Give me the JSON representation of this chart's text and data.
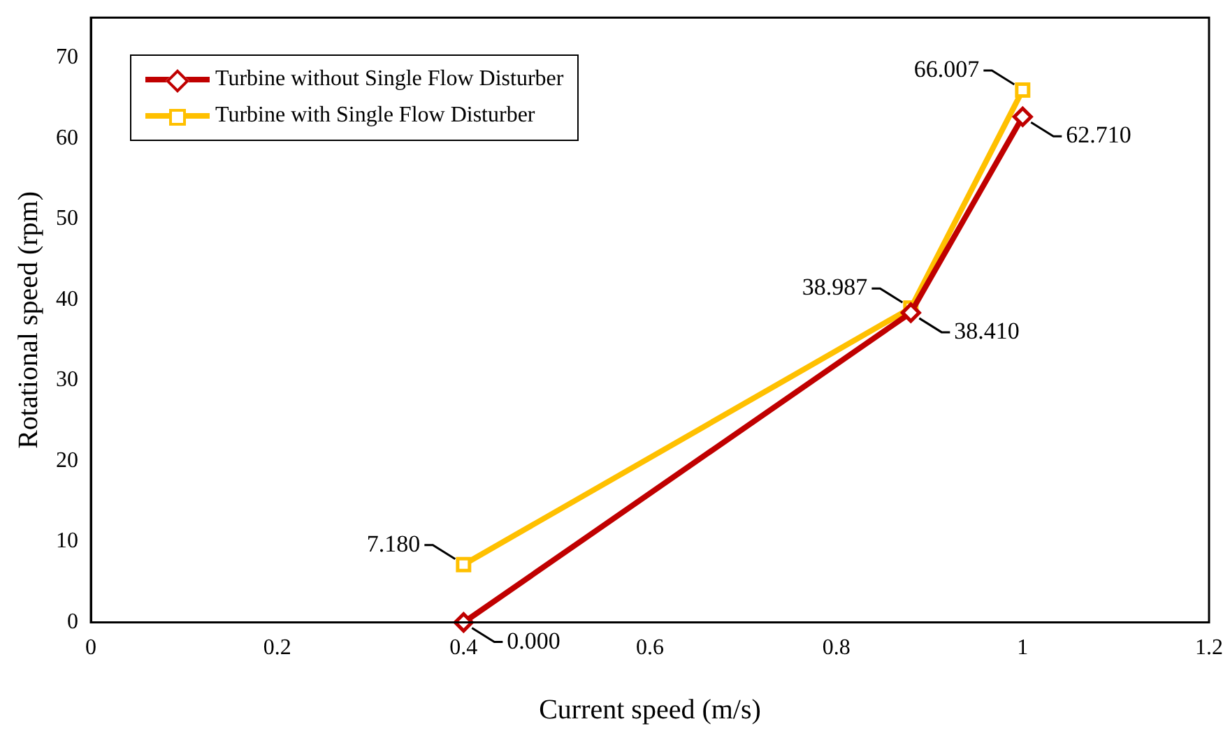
{
  "chart_data": {
    "type": "line",
    "xlabel": "Current speed (m/s)",
    "ylabel": "Rotational speed (rpm)",
    "x": [
      0.4,
      0.88,
      1
    ],
    "series": [
      {
        "name": "Turbine without Single Flow Disturber",
        "color": "#c00000",
        "marker": "diamond",
        "values": [
          0,
          38.41,
          62.71
        ],
        "value_labels": [
          "0.000",
          "38.410",
          "62.710"
        ]
      },
      {
        "name": "Turbine with Single Flow Disturber",
        "color": "#ffc000",
        "marker": "square",
        "values": [
          7.18,
          38.987,
          66.007
        ],
        "value_labels": [
          "7.180",
          "38.987",
          "66.007"
        ]
      }
    ],
    "xlim": [
      0,
      1.2
    ],
    "xticks": [
      0,
      0.2,
      0.4,
      0.6,
      0.8,
      1,
      1.2
    ],
    "ylim": [
      0,
      75
    ],
    "yticks": [
      0,
      10,
      20,
      30,
      40,
      50,
      60,
      70
    ],
    "grid": false,
    "legend": "top left"
  }
}
